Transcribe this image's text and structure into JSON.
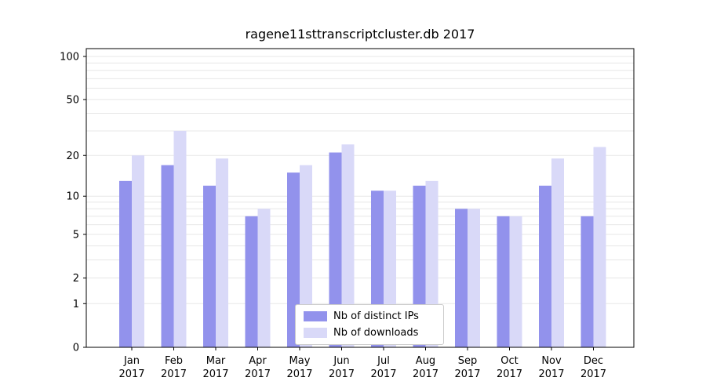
{
  "chart_data": {
    "type": "bar",
    "title": "ragene11sttranscriptcluster.db 2017",
    "year": "2017",
    "categories": [
      "Jan",
      "Feb",
      "Mar",
      "Apr",
      "May",
      "Jun",
      "Jul",
      "Aug",
      "Sep",
      "Oct",
      "Nov",
      "Dec"
    ],
    "series": [
      {
        "name": "Nb of distinct IPs",
        "color": "#9292ec",
        "values": [
          13,
          17,
          12,
          7,
          15,
          21,
          11,
          12,
          8,
          7,
          12,
          7
        ]
      },
      {
        "name": "Nb of downloads",
        "color": "#d9d9f8",
        "values": [
          20,
          30,
          19,
          8,
          17,
          24,
          11,
          13,
          8,
          7,
          19,
          23
        ]
      }
    ],
    "xlabel": "",
    "ylabel": "",
    "yticks": [
      100,
      50,
      20,
      10,
      5,
      2,
      1,
      0
    ],
    "ylim": [
      0,
      100
    ],
    "scale": "log(1+x) pseudo-log",
    "grid": "horizontal log gridlines on",
    "legend_position": "lower center"
  },
  "colors": {
    "grid": "#e7e7e7",
    "axis": "#000000",
    "text": "#000000",
    "background": "#ffffff"
  }
}
